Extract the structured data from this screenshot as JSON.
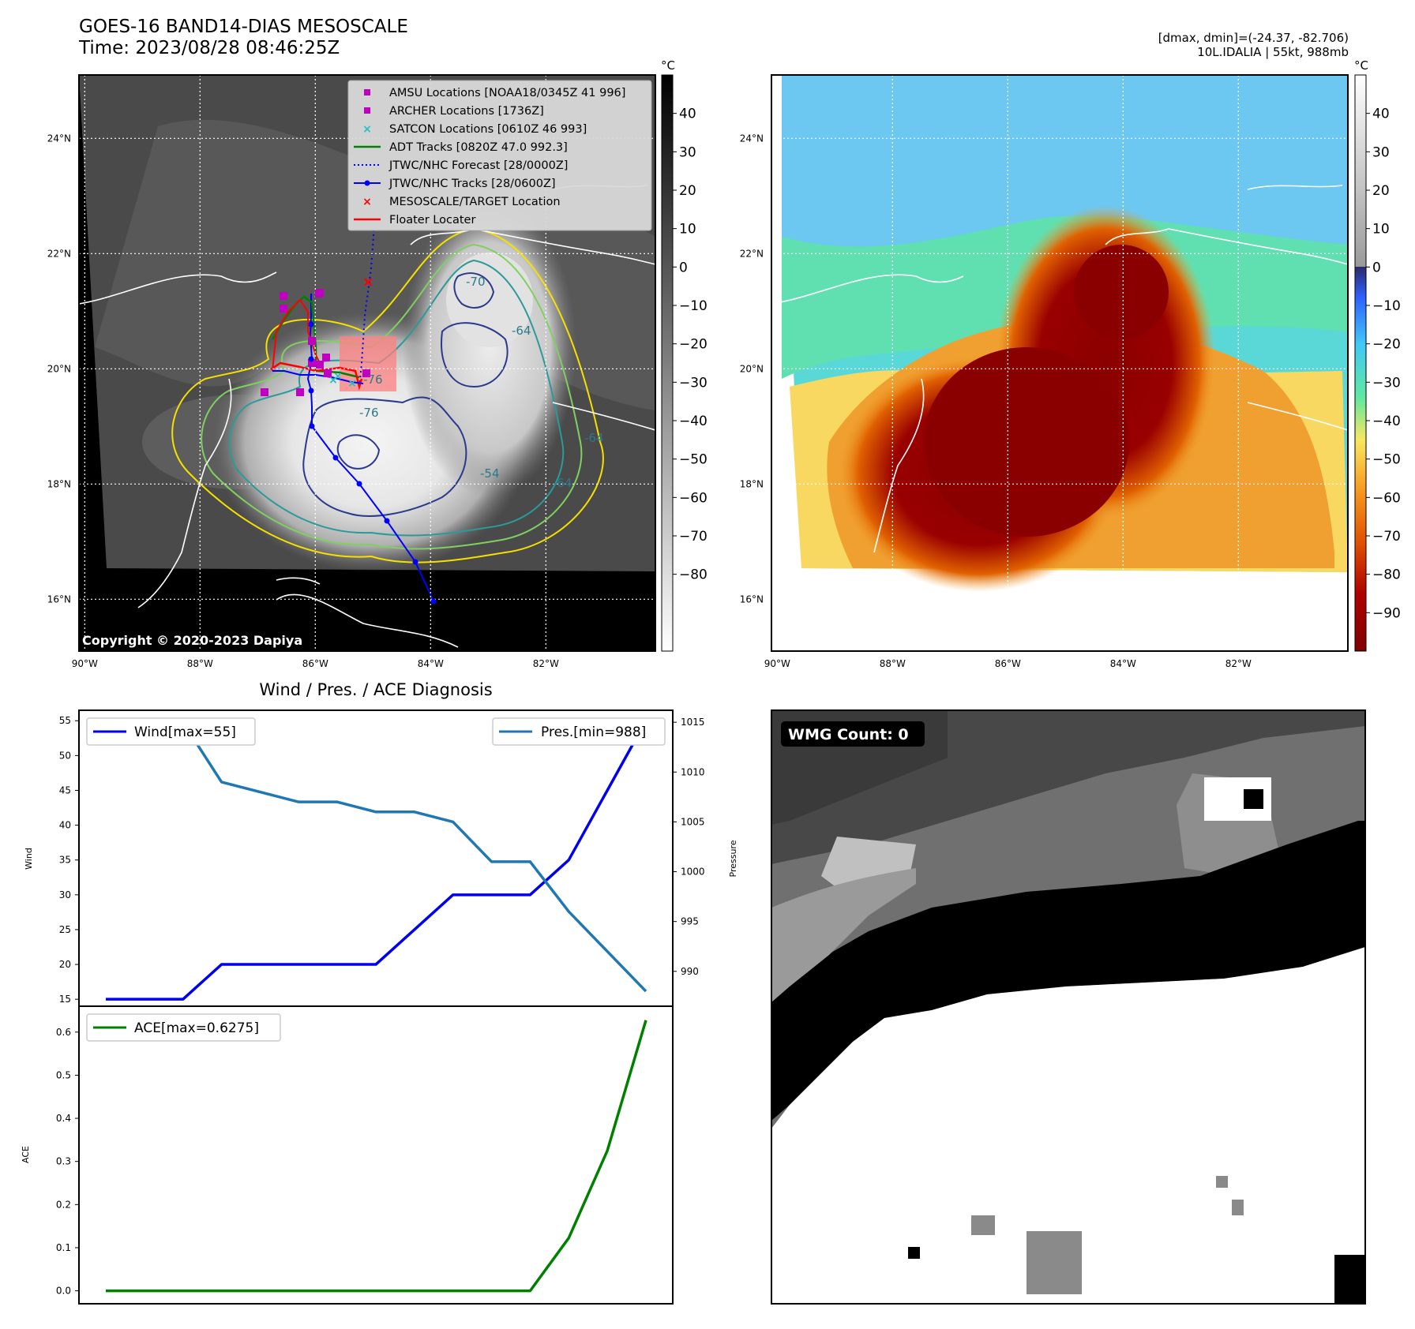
{
  "header": {
    "title_line1": "GOES-16 BAND14-DIAS MESOSCALE",
    "title_line2": "Time: 2023/08/28 08:46:25Z",
    "range_line": "[dmax, dmin]=(-24.37, -82.706)",
    "storm_line": "10L.IDALIA | 55kt, 988mb"
  },
  "maps": {
    "lat_labels": [
      "24°N",
      "22°N",
      "20°N",
      "18°N",
      "16°N"
    ],
    "lon_labels": [
      "90°W",
      "88°W",
      "86°W",
      "84°W",
      "82°W"
    ],
    "lat_values": [
      24,
      22,
      20,
      18,
      16
    ],
    "lon_values": [
      -90,
      -88,
      -86,
      -84,
      -82
    ],
    "extent": {
      "lon_min": -90.1,
      "lon_max": -80.1,
      "lat_min": 15.1,
      "lat_max": 25.1
    },
    "unit": "°C",
    "gray_cbar_ticks": [
      "40",
      "30",
      "20",
      "10",
      "0",
      "−10",
      "−20",
      "−30",
      "−40",
      "−50",
      "−60",
      "−70",
      "−80"
    ],
    "gray_cbar_values": [
      40,
      30,
      20,
      10,
      0,
      -10,
      -20,
      -30,
      -40,
      -50,
      -60,
      -70,
      -80
    ],
    "color_cbar_ticks": [
      "40",
      "30",
      "20",
      "10",
      "0",
      "−10",
      "−20",
      "−30",
      "−40",
      "−50",
      "−60",
      "−70",
      "−80",
      "−90"
    ],
    "color_cbar_values": [
      40,
      30,
      20,
      10,
      0,
      -10,
      -20,
      -30,
      -40,
      -50,
      -60,
      -70,
      -80,
      -90
    ],
    "cbar_range": [
      -100,
      50
    ],
    "copyright": "Copyright © 2020-2023 Dapiya",
    "contour_labels": [
      "-70",
      "-76",
      "-64",
      "-64",
      "-54",
      "-76",
      "-64"
    ],
    "legend": [
      {
        "label": "AMSU Locations [NOAA18/0345Z 41 996]",
        "color": "#c000c0",
        "marker": "square"
      },
      {
        "label": "ARCHER Locations [1736Z]",
        "color": "#c000c0",
        "marker": "square"
      },
      {
        "label": "SATCON Locations [0610Z 46 993]",
        "color": "#20c0c0",
        "marker": "x"
      },
      {
        "label": "ADT Tracks [0820Z 47.0 992.3]",
        "color": "#008000",
        "marker": "line"
      },
      {
        "label": "JTWC/NHC Forecast [28/0000Z]",
        "color": "#0000ff",
        "marker": "dotted"
      },
      {
        "label": "JTWC/NHC Tracks [28/0600Z]",
        "color": "#0000ff",
        "marker": "line-dot"
      },
      {
        "label": "MESOSCALE/TARGET Location",
        "color": "#ff0000",
        "marker": "x"
      },
      {
        "label": "Floater Locater",
        "color": "#ff0000",
        "marker": "line"
      }
    ]
  },
  "wmg": {
    "label": "WMG Count: 0"
  },
  "diag": {
    "title": "Wind / Pres. / ACE Diagnosis",
    "wind_ylabel": "Wind",
    "pres_ylabel": "Pressure",
    "ace_ylabel": "ACE",
    "wind_legend": "Wind[max=55]",
    "pres_legend": "Pres.[min=988]",
    "ace_legend": "ACE[max=0.6275]",
    "wind_ticks": [
      "15",
      "20",
      "25",
      "30",
      "35",
      "40",
      "45",
      "50",
      "55"
    ],
    "pres_ticks": [
      "990",
      "995",
      "1000",
      "1005",
      "1010",
      "1015"
    ],
    "ace_ticks": [
      "0.0",
      "0.1",
      "0.2",
      "0.3",
      "0.4",
      "0.5",
      "0.6"
    ]
  },
  "chart_data": {
    "type": "line",
    "x": [
      0,
      1,
      2,
      3,
      4,
      5,
      6,
      7,
      8,
      9,
      10,
      11,
      12,
      13,
      14
    ],
    "series": [
      {
        "name": "Wind[max=55]",
        "color": "#0000ee",
        "values": [
          15,
          15,
          15,
          20,
          20,
          20,
          20,
          20,
          25,
          30,
          30,
          30,
          35,
          45,
          55
        ]
      },
      {
        "name": "Pres.[min=988]",
        "color": "#1f77b4",
        "values": [
          1015,
          1015,
          1015,
          1009,
          1008,
          1007,
          1007,
          1006,
          1006,
          1005,
          1001,
          1001,
          996,
          992,
          988
        ]
      },
      {
        "name": "ACE[max=0.6275]",
        "color": "#008000",
        "values": [
          0,
          0,
          0,
          0,
          0,
          0,
          0,
          0,
          0,
          0,
          0,
          0,
          0.1225,
          0.325,
          0.6275
        ]
      }
    ],
    "ylim_wind": [
      14,
      56.5
    ],
    "ylim_pres": [
      986.5,
      1016.2
    ],
    "ylim_ace": [
      -0.03,
      0.66
    ]
  }
}
